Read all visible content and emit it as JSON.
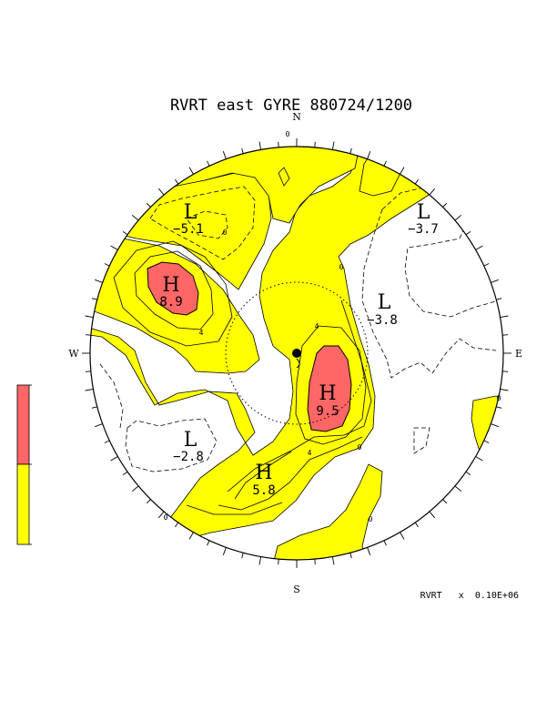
{
  "title": "RVRT east GYRE 880724/1200",
  "compass": {
    "north": "N",
    "south": "S",
    "east": "E",
    "west": "W"
  },
  "units_label": "RVRT   x  0.10E+06",
  "colors": {
    "positive_fill": "#ffff00",
    "high_fill": "#ff6666",
    "contour": "#000000"
  },
  "systems": [
    {
      "type": "L",
      "value": "−5.1"
    },
    {
      "type": "L",
      "value": "−3.7"
    },
    {
      "type": "H",
      "value": "8.9"
    },
    {
      "type": "L",
      "value": "−3.8"
    },
    {
      "type": "H",
      "value": "9.5"
    },
    {
      "type": "L",
      "value": "−2.8"
    },
    {
      "type": "H",
      "value": "5.8"
    }
  ],
  "contour_labels": [
    "0",
    "0",
    "0",
    "0",
    "0",
    "0",
    "0",
    "4",
    "4",
    "4"
  ],
  "colorbar": {
    "labels": [
      "",
      "",
      ""
    ]
  }
}
